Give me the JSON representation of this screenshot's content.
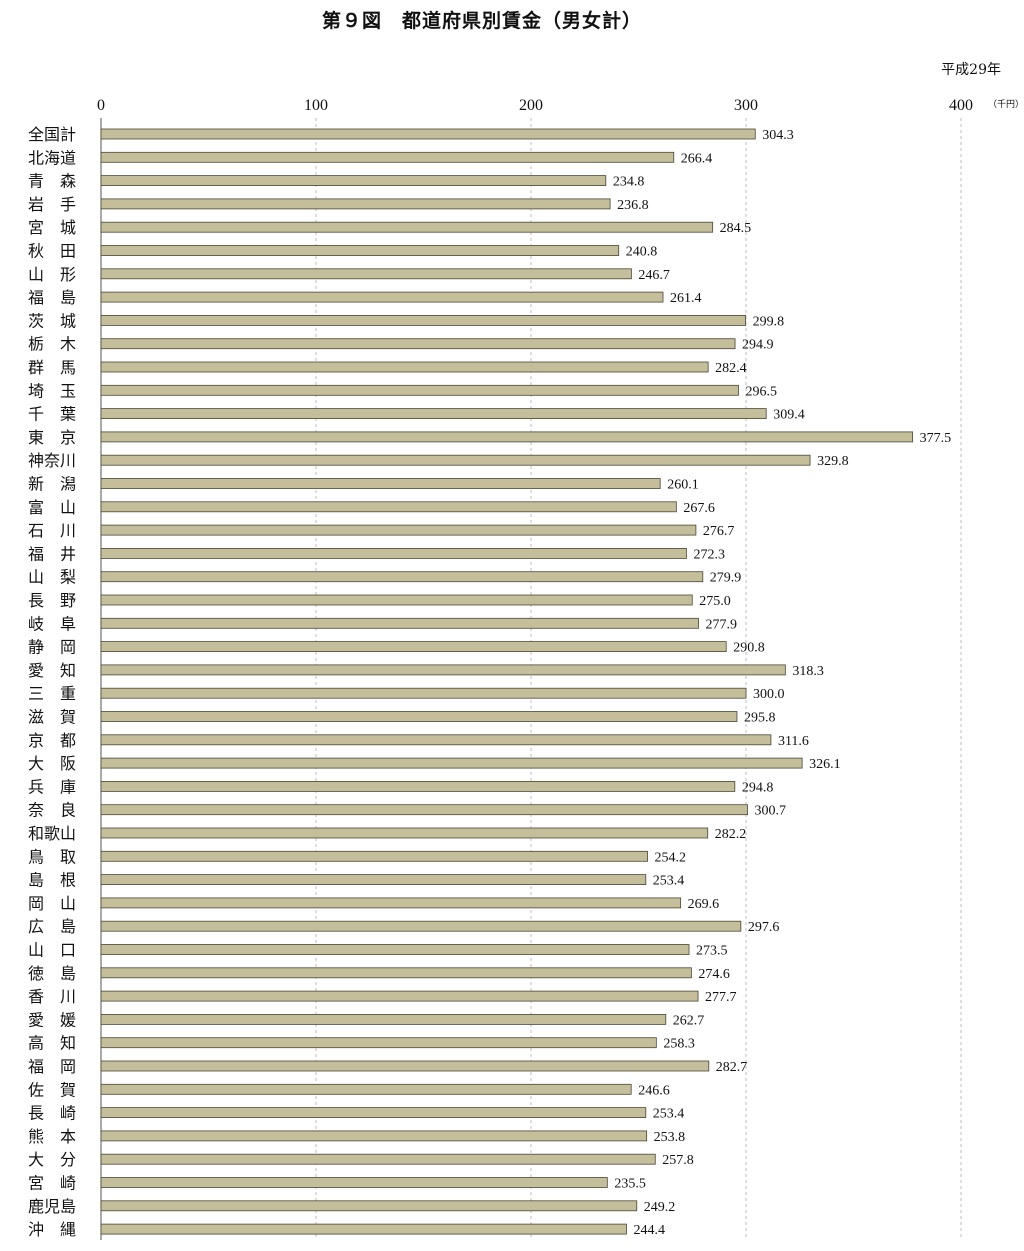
{
  "title": "第９図　都道府県別賃金（男女計）",
  "year_note": "平成29年",
  "unit": "（千円）",
  "chart_data": {
    "type": "bar",
    "orientation": "horizontal",
    "title": "第９図　都道府県別賃金（男女計）",
    "xlim": [
      0,
      400
    ],
    "xticks": [
      0,
      100,
      200,
      300,
      400
    ],
    "grid": true,
    "categories": [
      "全国計",
      "北海道",
      "青　森",
      "岩　手",
      "宮　城",
      "秋　田",
      "山　形",
      "福　島",
      "茨　城",
      "栃　木",
      "群　馬",
      "埼　玉",
      "千　葉",
      "東　京",
      "神奈川",
      "新　潟",
      "富　山",
      "石　川",
      "福　井",
      "山　梨",
      "長　野",
      "岐　阜",
      "静　岡",
      "愛　知",
      "三　重",
      "滋　賀",
      "京　都",
      "大　阪",
      "兵　庫",
      "奈　良",
      "和歌山",
      "鳥　取",
      "島　根",
      "岡　山",
      "広　島",
      "山　口",
      "徳　島",
      "香　川",
      "愛　媛",
      "高　知",
      "福　岡",
      "佐　賀",
      "長　崎",
      "熊　本",
      "大　分",
      "宮　崎",
      "鹿児島",
      "沖　縄"
    ],
    "values": [
      304.3,
      266.4,
      234.8,
      236.8,
      284.5,
      240.8,
      246.7,
      261.4,
      299.8,
      294.9,
      282.4,
      296.5,
      309.4,
      377.5,
      329.8,
      260.1,
      267.6,
      276.7,
      272.3,
      279.9,
      275.0,
      277.9,
      290.8,
      318.3,
      300.0,
      295.8,
      311.6,
      326.1,
      294.8,
      300.7,
      282.2,
      254.2,
      253.4,
      269.6,
      297.6,
      273.5,
      274.6,
      277.7,
      262.7,
      258.3,
      282.7,
      246.6,
      253.4,
      253.8,
      257.8,
      235.5,
      249.2,
      244.4
    ],
    "value_labels": [
      "304.3",
      "266.4",
      "234.8",
      "236.8",
      "284.5",
      "240.8",
      "246.7",
      "261.4",
      "299.8",
      "294.9",
      "282.4",
      "296.5",
      "309.4",
      "377.5",
      "329.8",
      "260.1",
      "267.6",
      "276.7",
      "272.3",
      "279.9",
      "275.0",
      "277.9",
      "290.8",
      "318.3",
      "300.0",
      "295.8",
      "311.6",
      "326.1",
      "294.8",
      "300.7",
      "282.2",
      "254.2",
      "253.4",
      "269.6",
      "297.6",
      "273.5",
      "274.6",
      "277.7",
      "262.7",
      "258.3",
      "282.7",
      "246.6",
      "253.4",
      "253.8",
      "257.8",
      "235.5",
      "249.2",
      "244.4"
    ],
    "colors": {
      "bar": "#c5be9b",
      "bar_edge": "#4a4636"
    }
  }
}
